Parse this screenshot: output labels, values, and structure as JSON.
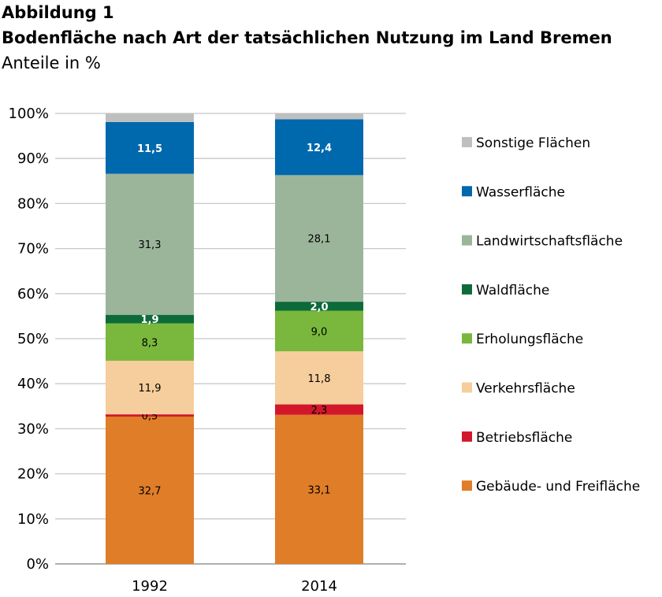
{
  "figure_label": "Abbildung 1",
  "chart_data": {
    "type": "bar",
    "stacked": true,
    "title": "Bodenfläche nach Art der tatsächlichen Nutzung im Land Bremen",
    "subtitle": "Anteile in %",
    "categories": [
      "1992",
      "2014"
    ],
    "ylim": [
      0,
      100
    ],
    "yticks": [
      "0%",
      "10%",
      "20%",
      "30%",
      "40%",
      "50%",
      "60%",
      "70%",
      "80%",
      "90%",
      "100%"
    ],
    "grid": true,
    "legend_position": "right",
    "series": [
      {
        "name": "Gebäude- und Freifläche",
        "color": "#e07d28",
        "values": [
          32.7,
          33.1
        ],
        "labels": [
          "32,7",
          "33,1"
        ],
        "label_color": "#000000"
      },
      {
        "name": "Betriebsfläche",
        "color": "#d2172a",
        "values": [
          0.5,
          2.3
        ],
        "labels": [
          "0,5",
          "2,3"
        ],
        "label_color": "#000000"
      },
      {
        "name": "Verkehrsfläche",
        "color": "#f6cd9c",
        "values": [
          11.9,
          11.8
        ],
        "labels": [
          "11,9",
          "11,8"
        ],
        "label_color": "#000000"
      },
      {
        "name": "Erholungsfläche",
        "color": "#79b83c",
        "values": [
          8.3,
          9.0
        ],
        "labels": [
          "8,3",
          "9,0"
        ],
        "label_color": "#000000"
      },
      {
        "name": "Waldfläche",
        "color": "#0d6a3a",
        "values": [
          1.9,
          2.0
        ],
        "labels": [
          "1,9",
          "2,0"
        ],
        "label_color": "#ffffff"
      },
      {
        "name": "Landwirtschaftsfläche",
        "color": "#9bb59b",
        "values": [
          31.3,
          28.1
        ],
        "labels": [
          "31,3",
          "28,1"
        ],
        "label_color": "#000000"
      },
      {
        "name": "Wasserfläche",
        "color": "#0068ad",
        "values": [
          11.5,
          12.4
        ],
        "labels": [
          "11,5",
          "12,4"
        ],
        "label_color": "#ffffff"
      },
      {
        "name": "Sonstige Flächen",
        "color": "#bfbfbf",
        "values": [
          1.9,
          1.3
        ],
        "labels": [
          "",
          ""
        ],
        "label_color": "#000000"
      }
    ]
  }
}
